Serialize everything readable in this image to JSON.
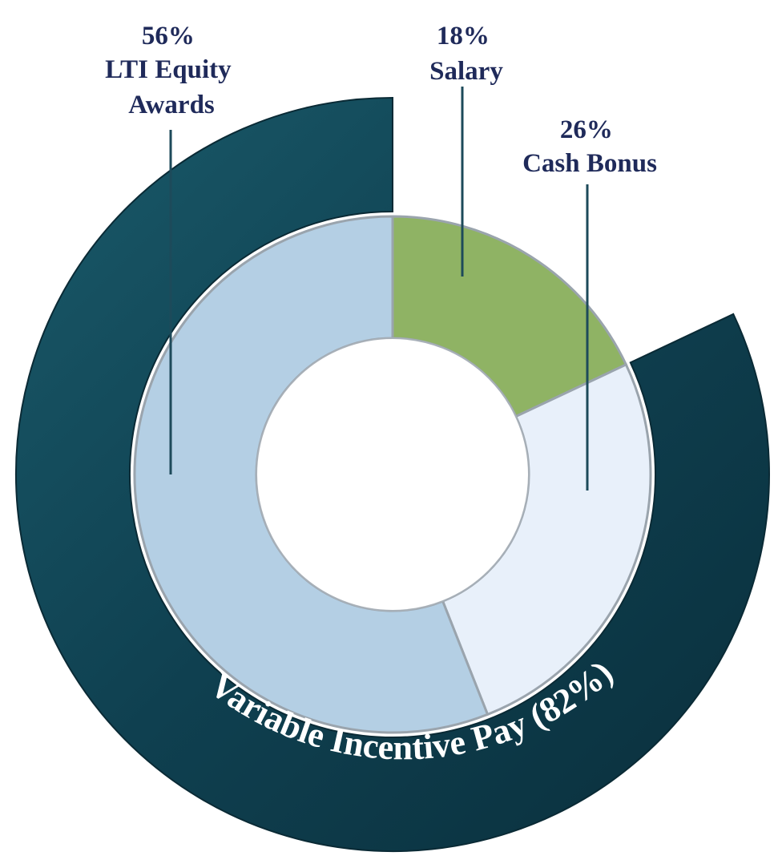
{
  "chart_data": {
    "type": "pie",
    "inner_ring": [
      {
        "label": "Salary",
        "value": 18,
        "value_label": "18%",
        "color": "#8fb364"
      },
      {
        "label": "Cash Bonus",
        "value": 26,
        "value_label": "26%",
        "color": "#e8f0fa"
      },
      {
        "label": "LTI Equity Awards",
        "value": 56,
        "value_label": "56%",
        "color": "#b4cfe4"
      }
    ],
    "outer_ring": {
      "label": "Variable Incentive Pay (82%)",
      "value": 82,
      "color": "#0f4050"
    }
  }
}
